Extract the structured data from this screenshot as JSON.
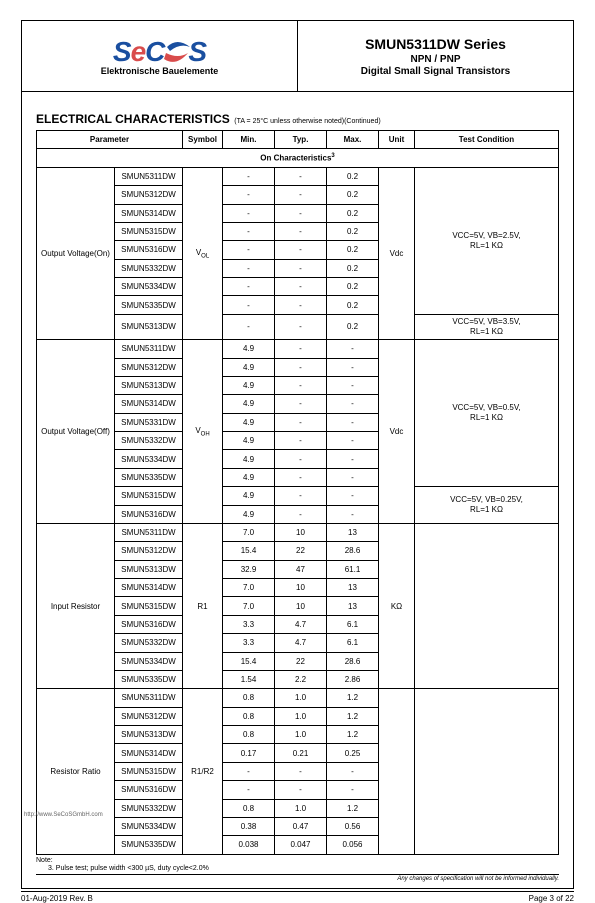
{
  "header": {
    "logo_s1": "S",
    "logo_e": "e",
    "logo_c": "C",
    "logo_s2": "S",
    "tagline": "Elektronische Bauelemente",
    "series": "SMUN5311DW Series",
    "sub": "NPN / PNP",
    "desc": "Digital Small Signal Transistors"
  },
  "section": {
    "title": "ELECTRICAL CHARACTERISTICS",
    "cond": "(TA = 25°C unless otherwise noted)(Continued)",
    "onchar": "On Characteristics",
    "onchar_note": "3"
  },
  "columns": {
    "parameter": "Parameter",
    "symbol": "Symbol",
    "min": "Min.",
    "typ": "Typ.",
    "max": "Max.",
    "unit": "Unit",
    "test": "Test Condition"
  },
  "parts": {
    "p1": "SMUN5311DW",
    "p2": "SMUN5312DW",
    "p3": "SMUN5313DW",
    "p4": "SMUN5314DW",
    "p5": "SMUN5315DW",
    "p6": "SMUN5316DW",
    "p7": "SMUN5331DW",
    "p8": "SMUN5332DW",
    "p9": "SMUN5334DW",
    "p10": "SMUN5335DW"
  },
  "groups": {
    "g1": {
      "param": "Output Voltage(On)",
      "symbol_pre": "V",
      "symbol_sub": "OL",
      "unit": "Vdc",
      "test1_l1": "VCC=5V,  VB=2.5V,",
      "test1_l2": "RL=1 KΩ",
      "test2_l1": "VCC=5V,  VB=3.5V,",
      "test2_l2": "RL=1 KΩ",
      "rows": [
        {
          "part": "p1",
          "min": "-",
          "typ": "-",
          "max": "0.2"
        },
        {
          "part": "p2",
          "min": "-",
          "typ": "-",
          "max": "0.2"
        },
        {
          "part": "p4",
          "min": "-",
          "typ": "-",
          "max": "0.2"
        },
        {
          "part": "p5",
          "min": "-",
          "typ": "-",
          "max": "0.2"
        },
        {
          "part": "p6",
          "min": "-",
          "typ": "-",
          "max": "0.2"
        },
        {
          "part": "p8",
          "min": "-",
          "typ": "-",
          "max": "0.2"
        },
        {
          "part": "p9",
          "min": "-",
          "typ": "-",
          "max": "0.2"
        },
        {
          "part": "p10",
          "min": "-",
          "typ": "-",
          "max": "0.2"
        },
        {
          "part": "p3",
          "min": "-",
          "typ": "-",
          "max": "0.2"
        }
      ]
    },
    "g2": {
      "param": "Output Voltage(Off)",
      "symbol_pre": "V",
      "symbol_sub": "OH",
      "unit": "Vdc",
      "test1_l1": "VCC=5V,  VB=0.5V,",
      "test1_l2": "RL=1 KΩ",
      "test2_l1": "VCC=5V, VB=0.25V,",
      "test2_l2": "RL=1 KΩ",
      "rows": [
        {
          "part": "p1",
          "min": "4.9",
          "typ": "-",
          "max": "-"
        },
        {
          "part": "p2",
          "min": "4.9",
          "typ": "-",
          "max": "-"
        },
        {
          "part": "p3",
          "min": "4.9",
          "typ": "-",
          "max": "-"
        },
        {
          "part": "p4",
          "min": "4.9",
          "typ": "-",
          "max": "-"
        },
        {
          "part": "p7",
          "min": "4.9",
          "typ": "-",
          "max": "-"
        },
        {
          "part": "p8",
          "min": "4.9",
          "typ": "-",
          "max": "-"
        },
        {
          "part": "p9",
          "min": "4.9",
          "typ": "-",
          "max": "-"
        },
        {
          "part": "p10",
          "min": "4.9",
          "typ": "-",
          "max": "-"
        },
        {
          "part": "p5",
          "min": "4.9",
          "typ": "-",
          "max": "-"
        },
        {
          "part": "p6",
          "min": "4.9",
          "typ": "-",
          "max": "-"
        }
      ]
    },
    "g3": {
      "param": "Input Resistor",
      "symbol": "R1",
      "unit": "KΩ",
      "rows": [
        {
          "part": "p1",
          "min": "7.0",
          "typ": "10",
          "max": "13"
        },
        {
          "part": "p2",
          "min": "15.4",
          "typ": "22",
          "max": "28.6"
        },
        {
          "part": "p3",
          "min": "32.9",
          "typ": "47",
          "max": "61.1"
        },
        {
          "part": "p4",
          "min": "7.0",
          "typ": "10",
          "max": "13"
        },
        {
          "part": "p5",
          "min": "7.0",
          "typ": "10",
          "max": "13"
        },
        {
          "part": "p6",
          "min": "3.3",
          "typ": "4.7",
          "max": "6.1"
        },
        {
          "part": "p8",
          "min": "3.3",
          "typ": "4.7",
          "max": "6.1"
        },
        {
          "part": "p9",
          "min": "15.4",
          "typ": "22",
          "max": "28.6"
        },
        {
          "part": "p10",
          "min": "1.54",
          "typ": "2.2",
          "max": "2.86"
        }
      ]
    },
    "g4": {
      "param": "Resistor Ratio",
      "symbol": "R1/R2",
      "unit": "",
      "rows": [
        {
          "part": "p1",
          "min": "0.8",
          "typ": "1.0",
          "max": "1.2"
        },
        {
          "part": "p2",
          "min": "0.8",
          "typ": "1.0",
          "max": "1.2"
        },
        {
          "part": "p3",
          "min": "0.8",
          "typ": "1.0",
          "max": "1.2"
        },
        {
          "part": "p4",
          "min": "0.17",
          "typ": "0.21",
          "max": "0.25"
        },
        {
          "part": "p5",
          "min": "-",
          "typ": "-",
          "max": "-"
        },
        {
          "part": "p6",
          "min": "-",
          "typ": "-",
          "max": "-"
        },
        {
          "part": "p8",
          "min": "0.8",
          "typ": "1.0",
          "max": "1.2"
        },
        {
          "part": "p9",
          "min": "0.38",
          "typ": "0.47",
          "max": "0.56"
        },
        {
          "part": "p10",
          "min": "0.038",
          "typ": "0.047",
          "max": "0.056"
        }
      ]
    }
  },
  "notes": {
    "label": "Note:",
    "line": "3. Pulse test; pulse width <300 µS, duty cycle<2.0%"
  },
  "disclaimer": "Any changes of specification will not be informed individually.",
  "footer": {
    "left": "01-Aug-2019 Rev. B",
    "right": "Page 3 of 22"
  },
  "url": "http://www.SeCoSGmbH.com",
  "colwidths": {
    "param": "78px",
    "part": "68px",
    "symbol": "40px",
    "min": "52px",
    "typ": "52px",
    "max": "52px",
    "unit": "36px",
    "test": "auto"
  },
  "colors": {
    "border": "#000000",
    "text": "#000000",
    "logo_blue": "#1a4fa0",
    "logo_red": "#d94c4c",
    "background": "#ffffff"
  }
}
